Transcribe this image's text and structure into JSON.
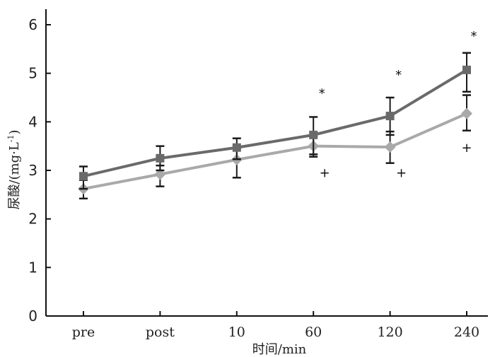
{
  "chart_data": {
    "type": "line",
    "categories": [
      "pre",
      "post",
      "10",
      "60",
      "120",
      "240"
    ],
    "xlabel": "时间/min",
    "ylabel_main": "尿酸/(mg·L",
    "ylabel_sup": "-1",
    "ylabel_close": ")",
    "ylim": [
      0,
      6
    ],
    "yticks": [
      0,
      1,
      2,
      3,
      4,
      5,
      6
    ],
    "series": [
      {
        "name": "series-dark",
        "marker": "square",
        "color": "#6a6a6a",
        "values": [
          2.88,
          3.25,
          3.47,
          3.73,
          4.12,
          5.07
        ],
        "err_upper": [
          3.08,
          3.5,
          3.66,
          4.1,
          4.5,
          5.42
        ],
        "err_lower": [
          2.62,
          3.0,
          3.23,
          3.33,
          3.73,
          4.62
        ]
      },
      {
        "name": "series-light",
        "marker": "diamond",
        "color": "#a9a9a9",
        "values": [
          2.62,
          2.92,
          3.22,
          3.5,
          3.48,
          4.17
        ],
        "err_upper": [
          2.8,
          3.1,
          3.45,
          3.7,
          3.8,
          4.55
        ],
        "err_lower": [
          2.42,
          2.67,
          2.85,
          3.28,
          3.15,
          3.82
        ]
      }
    ],
    "annotations": [
      {
        "category": "60",
        "text": "*",
        "y": 4.5,
        "dx": 12
      },
      {
        "category": "120",
        "text": "*",
        "y": 4.88,
        "dx": 12
      },
      {
        "category": "240",
        "text": "*",
        "y": 5.68,
        "dx": 10
      },
      {
        "category": "60",
        "text": "+",
        "y": 2.86,
        "dx": 16
      },
      {
        "category": "120",
        "text": "+",
        "y": 2.86,
        "dx": 16
      },
      {
        "category": "240",
        "text": "+",
        "y": 3.38,
        "dx": 0
      }
    ]
  }
}
